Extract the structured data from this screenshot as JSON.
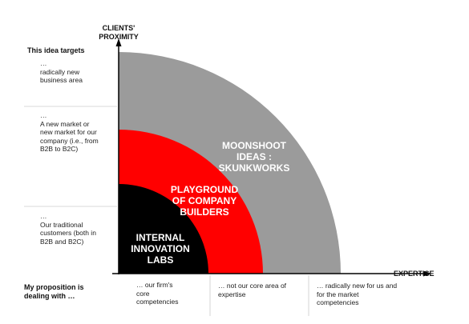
{
  "y_axis_title": "CLIENTS'\nPROXIMITY",
  "x_axis_title": "EXPERTISE",
  "y_heading": "This idea targets",
  "y_levels": [
    "…\nradically new\nbusiness area",
    "…\nA new market or\nnew market for our\ncompany (i.e., from\nB2B to B2C)",
    "…\nOur traditional\ncustomers (both in\nB2B and B2C)"
  ],
  "x_heading": "My proposition is\ndealing with …",
  "x_levels": [
    "… our firm's\ncore\ncompetencies",
    "… not our core area of\nexpertise",
    "… radically new for us and\nfor the market\ncompetencies"
  ],
  "zones": [
    {
      "label": "MOONSHOOT\nIDEAS :\nSKUNKWORKS",
      "color": "#9b9b9b",
      "text_color": "#ffffff"
    },
    {
      "label": "PLAYGROUND\nOF COMPANY\nBUILDERS",
      "color": "#ff0000",
      "text_color": "#ffffff"
    },
    {
      "label": "INTERNAL\nINNOVATION\nLABS",
      "color": "#000000",
      "text_color": "#ffffff"
    }
  ],
  "axis_color": "#000000"
}
